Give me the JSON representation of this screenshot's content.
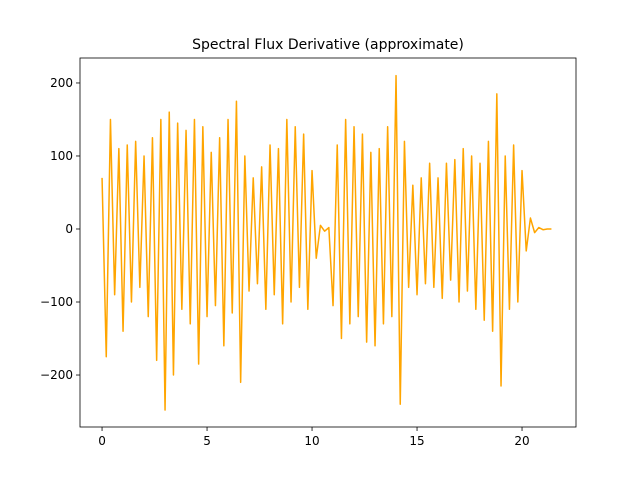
{
  "chart_data": {
    "type": "line",
    "title": "Spectral Flux Derivative (approximate)",
    "x": [
      0,
      0.2,
      0.4,
      0.6,
      0.8,
      1,
      1.2,
      1.4,
      1.6,
      1.8,
      2,
      2.2,
      2.4,
      2.6,
      2.8,
      3,
      3.2,
      3.4,
      3.6,
      3.8,
      4,
      4.2,
      4.4,
      4.6,
      4.8,
      5,
      5.2,
      5.4,
      5.6,
      5.8,
      6,
      6.2,
      6.4,
      6.6,
      6.8,
      7,
      7.2,
      7.4,
      7.6,
      7.8,
      8,
      8.2,
      8.4,
      8.6,
      8.8,
      9,
      9.2,
      9.4,
      9.6,
      9.8,
      10,
      10.2,
      10.4,
      10.6,
      10.8,
      11,
      11.2,
      11.4,
      11.6,
      11.8,
      12,
      12.2,
      12.4,
      12.6,
      12.8,
      13,
      13.2,
      13.4,
      13.6,
      13.8,
      14,
      14.2,
      14.4,
      14.6,
      14.8,
      15,
      15.2,
      15.4,
      15.6,
      15.8,
      16,
      16.2,
      16.4,
      16.6,
      16.8,
      17,
      17.2,
      17.4,
      17.6,
      17.8,
      18,
      18.2,
      18.4,
      18.6,
      18.8,
      19,
      19.2,
      19.4,
      19.6,
      19.8,
      20,
      20.2,
      20.4,
      20.6,
      20.8,
      21,
      21.2,
      21.4
    ],
    "series": [
      {
        "color": "#ffa500",
        "values": [
          70,
          -175,
          150,
          -90,
          110,
          -140,
          115,
          -100,
          120,
          -80,
          100,
          -120,
          125,
          -180,
          150,
          -248,
          160,
          -200,
          145,
          -110,
          135,
          -130,
          150,
          -185,
          140,
          -120,
          105,
          -105,
          125,
          -160,
          150,
          -115,
          175,
          -210,
          100,
          -85,
          70,
          -75,
          85,
          -110,
          115,
          -90,
          110,
          -130,
          150,
          -100,
          140,
          -80,
          130,
          -110,
          80,
          -40,
          5,
          -3,
          2,
          -105,
          115,
          -150,
          150,
          -130,
          140,
          -120,
          130,
          -155,
          105,
          -160,
          110,
          -130,
          140,
          -120,
          210,
          -240,
          120,
          -80,
          60,
          -90,
          70,
          -75,
          90,
          -80,
          70,
          -95,
          90,
          -70,
          95,
          -100,
          110,
          -85,
          100,
          -110,
          90,
          -125,
          120,
          -140,
          185,
          -215,
          100,
          -110,
          115,
          -100,
          80,
          -30,
          15,
          -5,
          2,
          -1,
          0,
          0
        ]
      }
    ],
    "xlim": [
      -1.05,
      22.57
    ],
    "xticks": [
      0,
      5,
      10,
      15,
      20
    ],
    "ylim": [
      -271.2,
      234.2
    ],
    "yticks": [
      {
        "value": -200,
        "label": "−200"
      },
      {
        "value": -100,
        "label": "−100"
      },
      0,
      100,
      200
    ]
  }
}
